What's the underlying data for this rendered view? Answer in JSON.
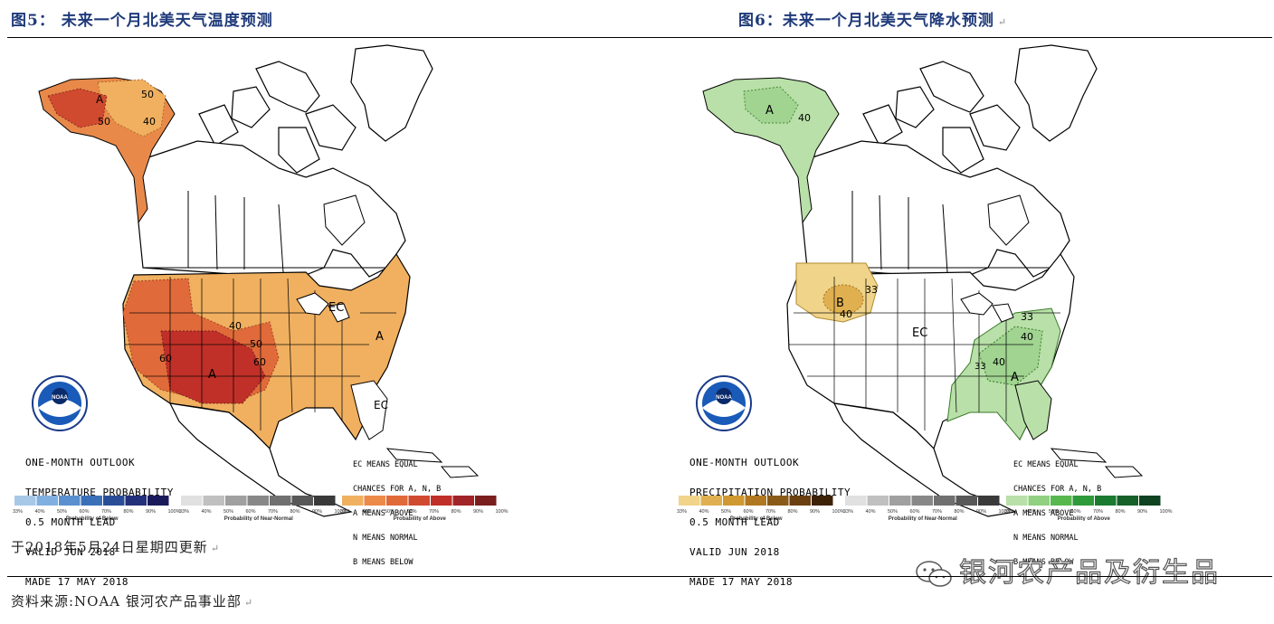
{
  "figures": [
    {
      "title": "图5：  未来一个月北美天气温度预测",
      "outlook_lines": [
        "ONE-MONTH OUTLOOK",
        "TEMPERATURE PROBABILITY",
        "0.5 MONTH LEAD",
        "VALID JUN 2018",
        "MADE 17 MAY 2018"
      ],
      "region_labels": [
        "A",
        "50",
        "50",
        "40",
        "EC",
        "40",
        "50",
        "60",
        "60",
        "A",
        "A",
        "EC"
      ],
      "legend_lines": [
        "EC MEANS EQUAL",
        "CHANCES FOR A, N, B",
        "A MEANS ABOVE",
        "N MEANS NORMAL",
        "B MEANS BELOW"
      ],
      "bars": [
        {
          "caption": "Probability of Below",
          "ticks": [
            "33%",
            "40%",
            "50%",
            "60%",
            "70%",
            "80%",
            "90%",
            "100%"
          ],
          "colors": [
            "#a8c8e8",
            "#80b0e0",
            "#5a90d0",
            "#3a70b8",
            "#2a4d98",
            "#23307a",
            "#1a1a5a"
          ]
        },
        {
          "caption": "Probability of Near-Normal",
          "ticks": [
            "33%",
            "40%",
            "50%",
            "60%",
            "70%",
            "80%",
            "90%",
            "100%"
          ],
          "colors": [
            "#e0e0e0",
            "#c0c0c0",
            "#a0a0a0",
            "#888888",
            "#707070",
            "#585858",
            "#3a3a3a"
          ]
        },
        {
          "caption": "Probability of Above",
          "ticks": [
            "33%",
            "40%",
            "50%",
            "60%",
            "70%",
            "80%",
            "90%",
            "100%"
          ],
          "colors": [
            "#f0b060",
            "#ec8a4a",
            "#e06a3a",
            "#d04a30",
            "#c03028",
            "#a02428",
            "#7a1e1e"
          ]
        }
      ]
    },
    {
      "title": "图6：未来一个月北美天气降水预测",
      "outlook_lines": [
        "ONE-MONTH OUTLOOK",
        "PRECIPITATION PROBABILITY",
        "0.5 MONTH LEAD",
        "VALID JUN 2018",
        "MADE 17 MAY 2018"
      ],
      "region_labels": [
        "A",
        "40",
        "B",
        "33",
        "40",
        "EC",
        "33",
        "40",
        "40",
        "33",
        "A"
      ],
      "legend_lines": [
        "EC MEANS EQUAL",
        "CHANCES FOR A, N, B",
        "A MEANS ABOVE",
        "N MEANS NORMAL",
        "B MEANS BELOW"
      ],
      "bars": [
        {
          "caption": "Probability of Below",
          "ticks": [
            "33%",
            "40%",
            "50%",
            "60%",
            "70%",
            "80%",
            "90%",
            "100%"
          ],
          "colors": [
            "#f0d48a",
            "#e0b050",
            "#d09830",
            "#b07820",
            "#8a5a18",
            "#6a4010",
            "#3e2208"
          ]
        },
        {
          "caption": "Probability of Near-Normal",
          "ticks": [
            "33%",
            "40%",
            "50%",
            "60%",
            "70%",
            "80%",
            "90%",
            "100%"
          ],
          "colors": [
            "#e0e0e0",
            "#c0c0c0",
            "#a0a0a0",
            "#888888",
            "#707070",
            "#585858",
            "#3a3a3a"
          ]
        },
        {
          "caption": "Probability of Above",
          "ticks": [
            "33%",
            "40%",
            "50%",
            "60%",
            "70%",
            "80%",
            "90%",
            "100%"
          ],
          "colors": [
            "#b8e0a8",
            "#90d080",
            "#58b850",
            "#2e9a3a",
            "#1a7a30",
            "#16602a",
            "#0e4220"
          ]
        }
      ]
    }
  ],
  "update_note": "于2018年5月24日星期四更新",
  "source_note": "资料来源:NOAA    银河农产品事业部",
  "watermark": "银河农产品及衍生品",
  "ret_mark": "↵"
}
